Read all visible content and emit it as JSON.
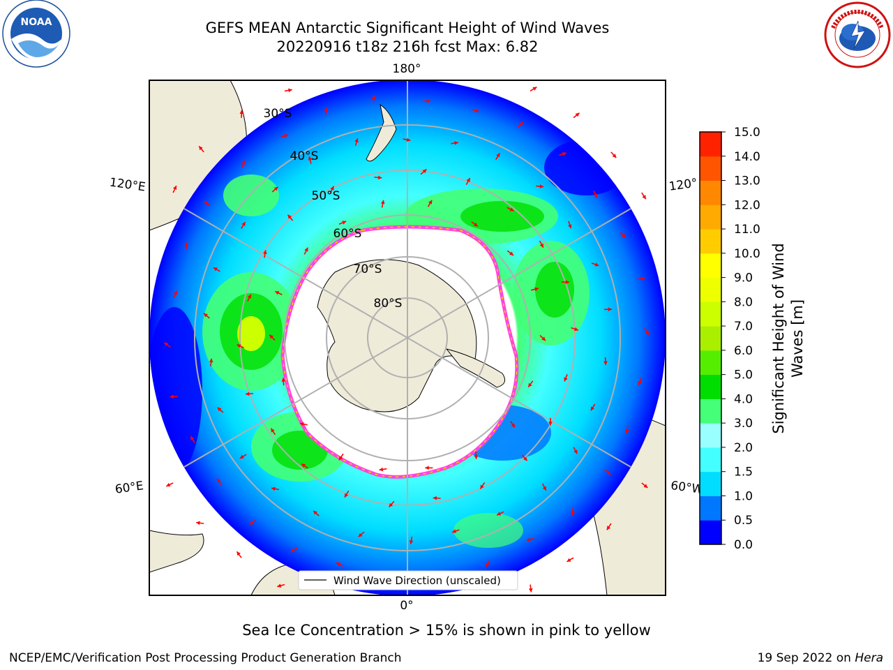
{
  "header": {
    "title_line1": "GEFS MEAN Antarctic Significant Height of Wind Waves",
    "title_line2": "20220916 t18z 216h fcst   Max: 6.82"
  },
  "logos": {
    "left": "noaa-logo",
    "right": "national-weather-service-logo"
  },
  "map": {
    "projection": "south-polar-stereographic",
    "longitude_labels": [
      "180°",
      "120°E",
      "120°",
      "60°E",
      "60°W",
      "0°"
    ],
    "latitude_labels": [
      "30°S",
      "40°S",
      "50°S",
      "60°S",
      "70°S",
      "80°S"
    ],
    "legend_entry": "Wind Wave Direction (unscaled)",
    "colors": {
      "land": "#efebd9",
      "ice_edge": "#ff44dd",
      "arrow": "#ff0000",
      "grid": "#b0b0b0"
    }
  },
  "colorbar": {
    "label": "Significant Height of Wind Waves [m]",
    "label_line1": "Significant Height of Wind",
    "label_line2": "Waves [m]",
    "ticks": [
      "0.0",
      "0.5",
      "1.0",
      "1.5",
      "2.0",
      "3.0",
      "4.0",
      "5.0",
      "6.0",
      "7.0",
      "8.0",
      "9.0",
      "10.0",
      "11.0",
      "12.0",
      "13.0",
      "14.0",
      "15.0"
    ],
    "colors": [
      "#0000ff",
      "#0077ff",
      "#00ddff",
      "#44ffff",
      "#99ffff",
      "#44ff77",
      "#00dd00",
      "#55ee00",
      "#aaee00",
      "#ccff00",
      "#eeff00",
      "#ffff00",
      "#ffcc00",
      "#ffaa00",
      "#ff8800",
      "#ff5500",
      "#ff2200"
    ]
  },
  "caption": "Sea Ice Concentration > 15% is shown in pink to yellow",
  "footer": {
    "left": "NCEP/EMC/Verification Post Processing Product Generation Branch",
    "right_prefix": "19 Sep 2022 on ",
    "right_host": "Hera"
  }
}
